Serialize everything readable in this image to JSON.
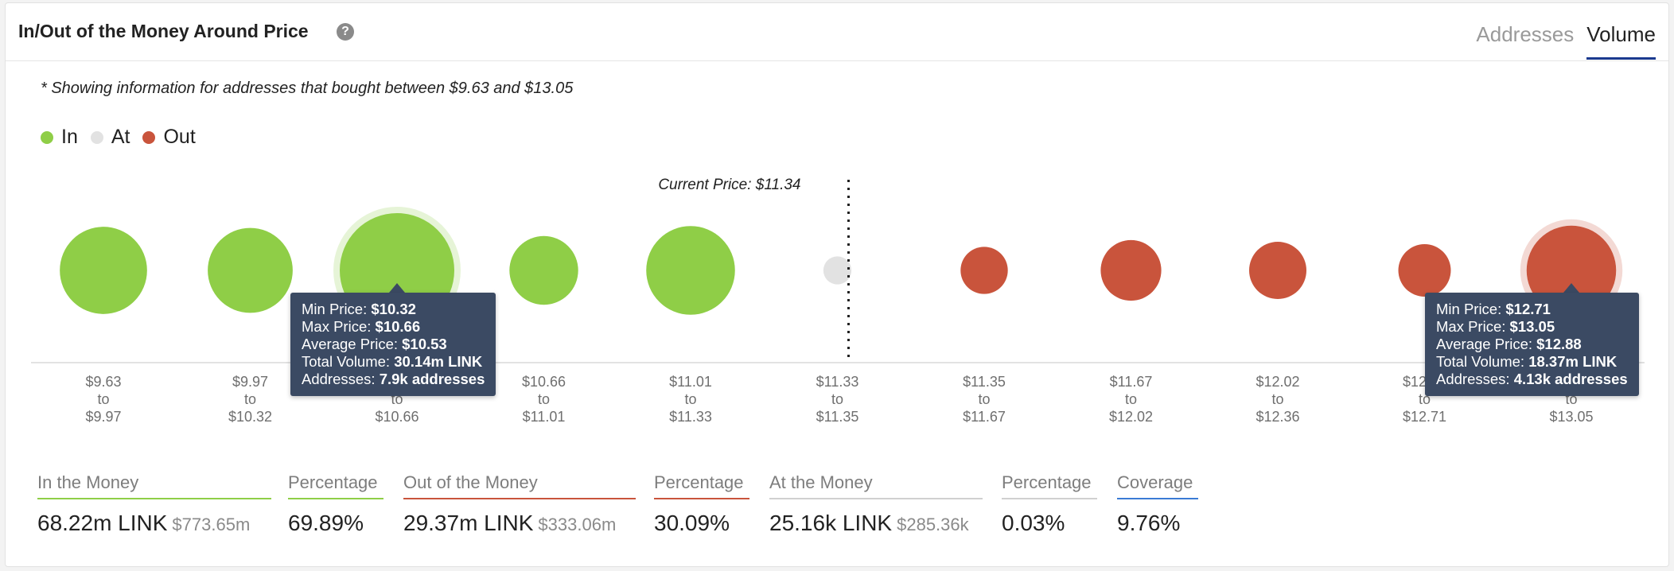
{
  "header": {
    "title": "In/Out of the Money Around Price",
    "help_icon": "?",
    "tabs": [
      {
        "label": "Addresses",
        "active": false
      },
      {
        "label": "Volume",
        "active": true
      }
    ]
  },
  "note": "* Showing information for addresses that bought between $9.63 and $13.05",
  "legend": [
    {
      "label": "In",
      "color": "#8fce47"
    },
    {
      "label": "At",
      "color": "#e2e2e2"
    },
    {
      "label": "Out",
      "color": "#c9543c"
    }
  ],
  "chart_data": {
    "type": "scatter",
    "encoding": "bubble size = total volume",
    "current_price_label": "Current Price: $11.34",
    "current_price": 11.34,
    "categories": [
      {
        "from": "$9.63",
        "to": "$9.97",
        "status": "in",
        "volume_rel": 0.58
      },
      {
        "from": "$9.97",
        "to": "$10.32",
        "status": "in",
        "volume_rel": 0.55
      },
      {
        "from": "$10.32",
        "to": "$10.66",
        "status": "in",
        "volume_rel": 1.0,
        "volume_link_m": 30.14
      },
      {
        "from": "$10.66",
        "to": "$11.01",
        "status": "in",
        "volume_rel": 0.36
      },
      {
        "from": "$11.01",
        "to": "$11.33",
        "status": "in",
        "volume_rel": 0.6
      },
      {
        "from": "$11.33",
        "to": "$11.35",
        "status": "at",
        "volume_rel": 0.06
      },
      {
        "from": "$11.35",
        "to": "$11.67",
        "status": "out",
        "volume_rel": 0.17
      },
      {
        "from": "$11.67",
        "to": "$12.02",
        "status": "out",
        "volume_rel": 0.28
      },
      {
        "from": "$12.02",
        "to": "$12.36",
        "status": "out",
        "volume_rel": 0.25
      },
      {
        "from": "$12.36",
        "to": "$12.71",
        "status": "out",
        "volume_rel": 0.21
      },
      {
        "from": "$12.71",
        "to": "$13.05",
        "status": "out",
        "volume_rel": 0.61,
        "volume_link_m": 18.37
      }
    ],
    "tick_word": "to",
    "highlighted_indices": [
      2,
      10
    ]
  },
  "tooltips": [
    {
      "index": 2,
      "lines": [
        {
          "label": "Min Price: ",
          "value": "$10.32"
        },
        {
          "label": "Max Price: ",
          "value": "$10.66"
        },
        {
          "label": "Average Price: ",
          "value": "$10.53"
        },
        {
          "label": "Total Volume: ",
          "value": "30.14m LINK"
        },
        {
          "label": "Addresses: ",
          "value": "7.9k addresses"
        }
      ]
    },
    {
      "index": 10,
      "lines": [
        {
          "label": "Min Price: ",
          "value": "$12.71"
        },
        {
          "label": "Max Price: ",
          "value": "$13.05"
        },
        {
          "label": "Average Price: ",
          "value": "$12.88"
        },
        {
          "label": "Total Volume: ",
          "value": "18.37m LINK"
        },
        {
          "label": "Addresses: ",
          "value": "4.13k addresses"
        }
      ]
    }
  ],
  "stats": [
    {
      "label": "In the Money",
      "value": "68.22m LINK",
      "sub": "$773.65m",
      "color": "#8fce47"
    },
    {
      "label": "Percentage",
      "value": "69.89%",
      "sub": "",
      "color": "#8fce47"
    },
    {
      "label": "Out of the Money",
      "value": "29.37m LINK",
      "sub": "$333.06m",
      "color": "#c9543c"
    },
    {
      "label": "Percentage",
      "value": "30.09%",
      "sub": "",
      "color": "#c9543c"
    },
    {
      "label": "At the Money",
      "value": "25.16k LINK",
      "sub": "$285.36k",
      "color": "#d0d0d0"
    },
    {
      "label": "Percentage",
      "value": "0.03%",
      "sub": "",
      "color": "#d0d0d0"
    },
    {
      "label": "Coverage",
      "value": "9.76%",
      "sub": "",
      "color": "#3a7bd5"
    }
  ]
}
